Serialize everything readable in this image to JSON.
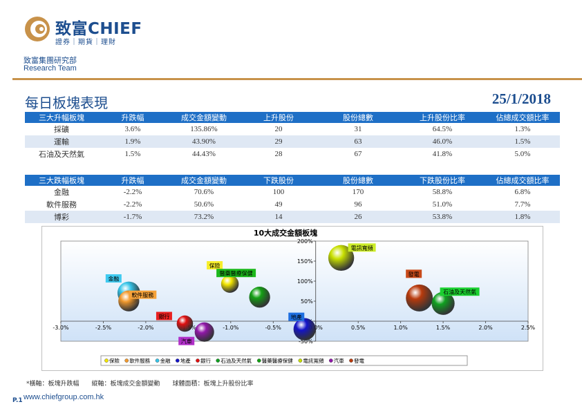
{
  "header": {
    "brand_name": "致富CHIEF",
    "brand_sub": "證券｜期貨｜理財",
    "dept_cn": "致富集團研究部",
    "dept_en": "Research Team",
    "title": "每日板塊表現",
    "date": "25/1/2018"
  },
  "gain_table": {
    "headers": [
      "三大升幅板塊",
      "升跌幅",
      "成交金額變動",
      "上升股份",
      "股份總數",
      "上升股份比率",
      "佔總成交額比率"
    ],
    "rows": [
      [
        "採礦",
        "3.6%",
        "135.86%",
        "20",
        "31",
        "64.5%",
        "1.3%"
      ],
      [
        "運輸",
        "1.9%",
        "43.90%",
        "29",
        "63",
        "46.0%",
        "1.5%"
      ],
      [
        "石油及天然氣",
        "1.5%",
        "44.43%",
        "28",
        "67",
        "41.8%",
        "5.0%"
      ]
    ]
  },
  "loss_table": {
    "headers": [
      "三大跌幅板塊",
      "升跌幅",
      "成交金額變動",
      "下跌股份",
      "股份總數",
      "下跌股份比率",
      "佔總成交額比率"
    ],
    "rows": [
      [
        "金融",
        "-2.2%",
        "70.6%",
        "100",
        "170",
        "58.8%",
        "6.8%"
      ],
      [
        "軟件服務",
        "-2.2%",
        "50.6%",
        "49",
        "96",
        "51.0%",
        "7.7%"
      ],
      [
        "博彩",
        "-1.7%",
        "73.2%",
        "14",
        "26",
        "53.8%",
        "1.8%"
      ]
    ]
  },
  "chart_data": {
    "type": "scatter",
    "title": "10大成交金額板塊",
    "xlim": [
      -0.03,
      0.025
    ],
    "ylim": [
      -0.5,
      2.0
    ],
    "x_ticks": [
      "-3.0%",
      "-2.5%",
      "-2.0%",
      "-1.5%",
      "-1.0%",
      "-0.5%",
      "0.0%",
      "0.5%",
      "1.0%",
      "1.5%",
      "2.0%",
      "2.5%"
    ],
    "y_ticks": [
      "-50%",
      "0%",
      "50%",
      "100%",
      "150%",
      "200%"
    ],
    "legend_position": "bottom",
    "series": [
      {
        "name": "保險",
        "x": -0.0101,
        "y": 0.93,
        "size": 0.36,
        "color": "#f2e600",
        "label_color": "#f7ee2a"
      },
      {
        "name": "軟件服務",
        "x": -0.022,
        "y": 0.506,
        "size": 0.51,
        "color": "#f29a2e",
        "label_color": "#f5a23a"
      },
      {
        "name": "金融",
        "x": -0.022,
        "y": 0.706,
        "size": 0.588,
        "color": "#35c4e8",
        "label_color": "#3fcaf0"
      },
      {
        "name": "地產",
        "x": -0.0013,
        "y": -0.2,
        "size": 0.57,
        "color": "#1414c8",
        "label_color": "#1e6fe0"
      },
      {
        "name": "銀行",
        "x": -0.0154,
        "y": -0.06,
        "size": 0.3,
        "color": "#e01010",
        "label_color": "#e82020"
      },
      {
        "name": "石油及天然氣",
        "x": 0.015,
        "y": 0.4443,
        "size": 0.6,
        "color": "#10a020",
        "label_color": "#1bd030"
      },
      {
        "name": "醫藥醫療保健",
        "x": -0.0066,
        "y": 0.6,
        "size": 0.51,
        "color": "#14a014",
        "label_color": "#1cb81c"
      },
      {
        "name": "電訊寬頻",
        "x": 0.003,
        "y": 1.58,
        "size": 0.73,
        "color": "#c8e000",
        "label_color": "#ccec28"
      },
      {
        "name": "汽車",
        "x": -0.0131,
        "y": -0.27,
        "size": 0.44,
        "color": "#9018a8",
        "label_color": "#b030c8"
      },
      {
        "name": "發電",
        "x": 0.0122,
        "y": 0.58,
        "size": 0.78,
        "color": "#b83a0c",
        "label_color": "#c84a1a"
      }
    ]
  },
  "footer": {
    "note": "*橫軸：板塊升跌幅　　縱軸：板塊成交金額變動　　球體面積：板塊上升股份比率",
    "page": "P.1",
    "website": "www.chiefgroup.com.hk"
  },
  "colors": {
    "brand": "#1d4e8f",
    "table_header": "#1e6fc6",
    "table_alt": "#dfe8f4",
    "rule": "#c8924a"
  }
}
